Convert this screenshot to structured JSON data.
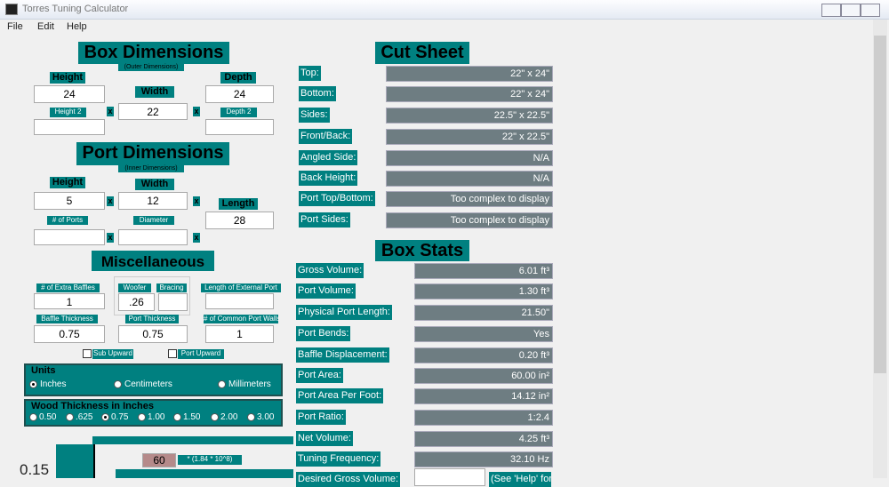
{
  "window": {
    "title": "Torres Tuning Calculator"
  },
  "menu": [
    "File",
    "Edit",
    "Help"
  ],
  "times": "x",
  "box_dimensions": {
    "title": "Box Dimensions",
    "subtitle": "(Outer Dimensions)",
    "height_label": "Height",
    "height": "24",
    "width_label": "Width",
    "width": "22",
    "depth_label": "Depth",
    "depth": "24",
    "height_2_label": "Height 2",
    "depth_2_label": "Depth 2"
  },
  "port_dimensions": {
    "title": "Port Dimensions",
    "subtitle": "(Inner Dimensions)",
    "height_label": "Height",
    "height": "5",
    "width_label": "Width",
    "width": "12",
    "length_label": "Length",
    "length": "28",
    "ports_label": "# of Ports",
    "diameter_label": "Diameter"
  },
  "miscellaneous": {
    "title": "Miscellaneous",
    "extra_baffles_label": "# of Extra Baffles",
    "extra_baffles": "1",
    "woofer_label": "Woofer",
    "woofer": ".26",
    "bracing_label": "Bracing",
    "external_port_label": "Length of External Port",
    "baffle_thickness_label": "Baffle Thickness",
    "baffle_thickness": "0.75",
    "port_thickness_label": "Port Thickness",
    "port_thickness": "0.75",
    "common_port_walls_label": "# of Common Port Walls",
    "common_port_walls": "1",
    "sub_upward": "Sub Upward",
    "port_upward": "Port Upward"
  },
  "units": {
    "title": "Units",
    "options": [
      "Inches",
      "Centimeters",
      "Millimeters"
    ],
    "selected": 0
  },
  "wood_thickness": {
    "title": "Wood Thickness in Inches",
    "options": [
      "0.50",
      ".625",
      "0.75",
      "1.00",
      "1.50",
      "2.00",
      "3.00"
    ],
    "selected": 2
  },
  "graph": {
    "value": "0.15",
    "input": "60",
    "formula": "* (1.84 * 10^8)"
  },
  "cut_sheet": {
    "title": "Cut Sheet",
    "rows": [
      {
        "label": "Top:",
        "value": "22\" x 24\""
      },
      {
        "label": "Bottom:",
        "value": "22\" x 24\""
      },
      {
        "label": "Sides:",
        "value": "22.5\" x 22.5\""
      },
      {
        "label": "Front/Back:",
        "value": "22\" x 22.5\""
      },
      {
        "label": "Angled Side:",
        "value": "N/A"
      },
      {
        "label": "Back Height:",
        "value": "N/A"
      },
      {
        "label": "Port Top/Bottom:",
        "value": "Too complex to display"
      },
      {
        "label": "Port Sides:",
        "value": "Too complex to display"
      }
    ]
  },
  "box_stats": {
    "title": "Box Stats",
    "rows": [
      {
        "label": "Gross Volume:",
        "value": "6.01 ft³"
      },
      {
        "label": "Port Volume:",
        "value": "1.30 ft³"
      },
      {
        "label": "Physical Port Length:",
        "value": "21.50\""
      },
      {
        "label": "Port Bends:",
        "value": "Yes"
      },
      {
        "label": "Baffle Displacement:",
        "value": "0.20 ft³"
      },
      {
        "label": "Port Area:",
        "value": "60.00 in²"
      },
      {
        "label": "Port Area Per Foot:",
        "value": "14.12 in²"
      },
      {
        "label": "Port Ratio:",
        "value": "1:2.4"
      },
      {
        "label": "Net Volume:",
        "value": "4.25 ft³"
      },
      {
        "label": "Tuning Frequency:",
        "value": "32.10 Hz"
      }
    ],
    "desired_gross_volume_label": "Desired Gross Volume:",
    "help_note": "(See 'Help' for"
  }
}
